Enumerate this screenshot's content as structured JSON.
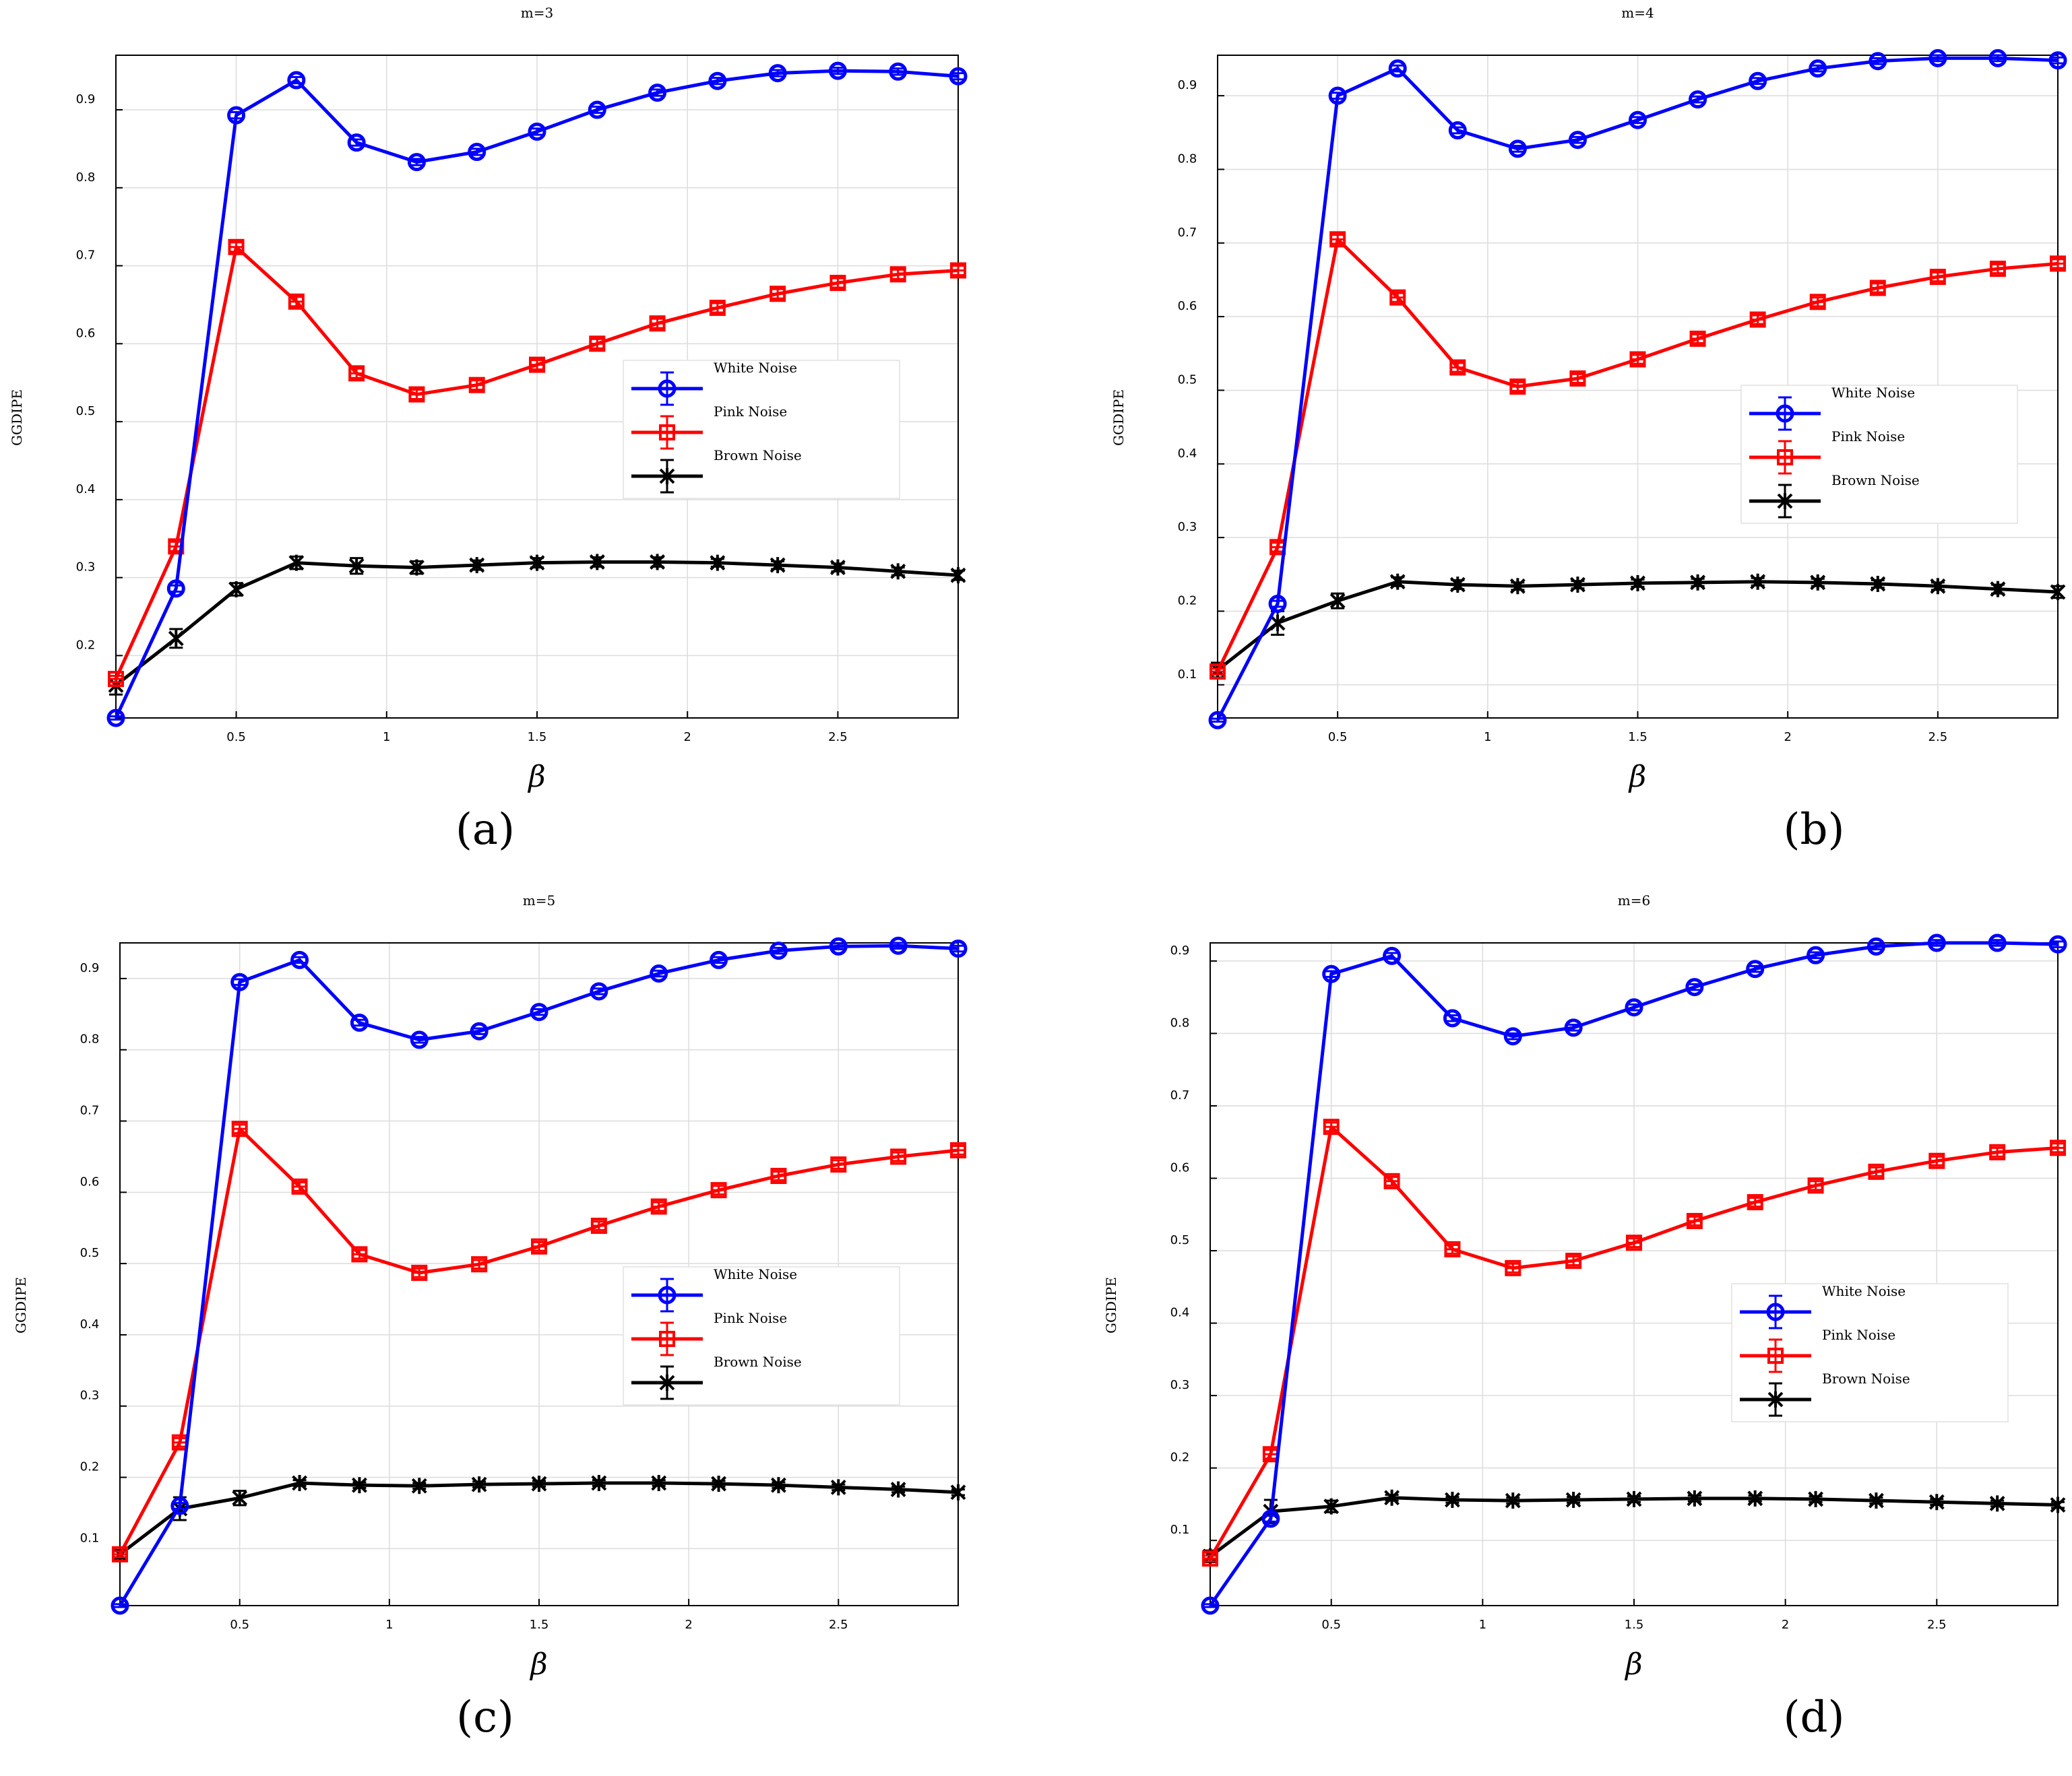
{
  "series_colors": {
    "white": "#0000ff",
    "pink": "#ff0000",
    "brown": "#000000"
  },
  "chart_data": [
    {
      "type": "line",
      "panel_label": "(a)",
      "title": "m=3",
      "xlabel": "β",
      "ylabel": "GGDIPE",
      "xlim": [
        0.1,
        2.9
      ],
      "ylim": [
        0.12,
        0.97
      ],
      "xticks": [
        0.5,
        1,
        1.5,
        2,
        2.5
      ],
      "xtick_labels": [
        "0.5",
        "1",
        "1.5",
        "2",
        "2.5"
      ],
      "yticks": [
        0.2,
        0.3,
        0.4,
        0.5,
        0.6,
        0.7,
        0.8,
        0.9
      ],
      "ytick_labels": [
        "0.2",
        "0.3",
        "0.4",
        "0.5",
        "0.6",
        "0.7",
        "0.8",
        "0.9"
      ],
      "grid": true,
      "legend_position": "center-right",
      "x": [
        0.1,
        0.3,
        0.5,
        0.7,
        0.9,
        1.1,
        1.3,
        1.5,
        1.7,
        1.9,
        2.1,
        2.3,
        2.5,
        2.7,
        2.9
      ],
      "series": [
        {
          "name": "White Noise",
          "marker": "circle",
          "values": [
            0.12,
            0.286,
            0.893,
            0.938,
            0.858,
            0.833,
            0.846,
            0.872,
            0.9,
            0.922,
            0.937,
            0.947,
            0.95,
            0.949,
            0.943
          ],
          "errors": [
            0.002,
            0.004,
            0.004,
            0.004,
            0.004,
            0.004,
            0.004,
            0.004,
            0.004,
            0.004,
            0.004,
            0.004,
            0.004,
            0.004,
            0.004
          ]
        },
        {
          "name": "Pink Noise",
          "marker": "square",
          "values": [
            0.17,
            0.34,
            0.724,
            0.654,
            0.562,
            0.535,
            0.547,
            0.573,
            0.6,
            0.626,
            0.646,
            0.664,
            0.678,
            0.689,
            0.694
          ],
          "errors": [
            0.004,
            0.006,
            0.006,
            0.006,
            0.006,
            0.006,
            0.006,
            0.006,
            0.006,
            0.006,
            0.006,
            0.006,
            0.006,
            0.006,
            0.006
          ]
        },
        {
          "name": "Brown Noise",
          "marker": "star",
          "values": [
            0.162,
            0.222,
            0.285,
            0.319,
            0.315,
            0.313,
            0.316,
            0.319,
            0.32,
            0.32,
            0.319,
            0.316,
            0.313,
            0.308,
            0.303
          ],
          "errors": [
            0.012,
            0.012,
            0.008,
            0.008,
            0.01,
            0.008,
            0.006,
            0.006,
            0.006,
            0.006,
            0.005,
            0.005,
            0.005,
            0.005,
            0.006
          ]
        }
      ]
    },
    {
      "type": "line",
      "panel_label": "(b)",
      "title": "m=4",
      "xlabel": "β",
      "ylabel": "GGDIPE",
      "xlim": [
        0.1,
        2.9
      ],
      "ylim": [
        0.055,
        0.955
      ],
      "xticks": [
        0.5,
        1,
        1.5,
        2,
        2.5
      ],
      "xtick_labels": [
        "0.5",
        "1",
        "1.5",
        "2",
        "2.5"
      ],
      "yticks": [
        0.1,
        0.2,
        0.3,
        0.4,
        0.5,
        0.6,
        0.7,
        0.8,
        0.9
      ],
      "ytick_labels": [
        "0.1",
        "0.2",
        "0.3",
        "0.4",
        "0.5",
        "0.6",
        "0.7",
        "0.8",
        "0.9"
      ],
      "grid": true,
      "legend_position": "center-right",
      "x": [
        0.1,
        0.3,
        0.5,
        0.7,
        0.9,
        1.1,
        1.3,
        1.5,
        1.7,
        1.9,
        2.1,
        2.3,
        2.5,
        2.7,
        2.9
      ],
      "series": [
        {
          "name": "White Noise",
          "marker": "circle",
          "values": [
            0.052,
            0.21,
            0.9,
            0.937,
            0.853,
            0.828,
            0.84,
            0.867,
            0.895,
            0.92,
            0.937,
            0.947,
            0.951,
            0.951,
            0.948
          ],
          "errors": [
            0.002,
            0.004,
            0.004,
            0.004,
            0.004,
            0.004,
            0.004,
            0.004,
            0.004,
            0.004,
            0.004,
            0.004,
            0.004,
            0.004,
            0.004
          ]
        },
        {
          "name": "Pink Noise",
          "marker": "square",
          "values": [
            0.118,
            0.287,
            0.705,
            0.626,
            0.531,
            0.505,
            0.516,
            0.542,
            0.57,
            0.596,
            0.62,
            0.639,
            0.654,
            0.665,
            0.672
          ],
          "errors": [
            0.004,
            0.006,
            0.006,
            0.006,
            0.006,
            0.006,
            0.006,
            0.006,
            0.006,
            0.006,
            0.006,
            0.006,
            0.006,
            0.006,
            0.006
          ]
        },
        {
          "name": "Brown Noise",
          "marker": "star",
          "values": [
            0.12,
            0.184,
            0.214,
            0.24,
            0.236,
            0.234,
            0.236,
            0.238,
            0.239,
            0.24,
            0.239,
            0.237,
            0.234,
            0.23,
            0.226
          ],
          "errors": [
            0.01,
            0.016,
            0.01,
            0.006,
            0.006,
            0.005,
            0.005,
            0.005,
            0.005,
            0.005,
            0.005,
            0.005,
            0.005,
            0.006,
            0.008
          ]
        }
      ]
    },
    {
      "type": "line",
      "panel_label": "(c)",
      "title": "m=5",
      "xlabel": "β",
      "ylabel": "GGDIPE",
      "xlim": [
        0.1,
        2.9
      ],
      "ylim": [
        0.02,
        0.95
      ],
      "xticks": [
        0.5,
        1,
        1.5,
        2,
        2.5
      ],
      "xtick_labels": [
        "0.5",
        "1",
        "1.5",
        "2",
        "2.5"
      ],
      "yticks": [
        0.1,
        0.2,
        0.3,
        0.4,
        0.5,
        0.6,
        0.7,
        0.8,
        0.9
      ],
      "ytick_labels": [
        "0.1",
        "0.2",
        "0.3",
        "0.4",
        "0.5",
        "0.6",
        "0.7",
        "0.8",
        "0.9"
      ],
      "grid": true,
      "legend_position": "center-right",
      "x": [
        0.1,
        0.3,
        0.5,
        0.7,
        0.9,
        1.1,
        1.3,
        1.5,
        1.7,
        1.9,
        2.1,
        2.3,
        2.5,
        2.7,
        2.9
      ],
      "series": [
        {
          "name": "White Noise",
          "marker": "circle",
          "values": [
            0.02,
            0.16,
            0.895,
            0.926,
            0.838,
            0.814,
            0.826,
            0.853,
            0.882,
            0.907,
            0.926,
            0.939,
            0.945,
            0.946,
            0.942
          ],
          "errors": [
            0.002,
            0.004,
            0.004,
            0.004,
            0.004,
            0.004,
            0.004,
            0.004,
            0.004,
            0.004,
            0.004,
            0.004,
            0.004,
            0.004,
            0.004
          ]
        },
        {
          "name": "Pink Noise",
          "marker": "square",
          "values": [
            0.092,
            0.249,
            0.689,
            0.608,
            0.513,
            0.487,
            0.499,
            0.524,
            0.553,
            0.58,
            0.603,
            0.623,
            0.639,
            0.65,
            0.659
          ],
          "errors": [
            0.004,
            0.006,
            0.006,
            0.006,
            0.006,
            0.006,
            0.006,
            0.006,
            0.006,
            0.006,
            0.006,
            0.006,
            0.006,
            0.006,
            0.006
          ]
        },
        {
          "name": "Brown Noise",
          "marker": "star",
          "values": [
            0.092,
            0.156,
            0.171,
            0.192,
            0.189,
            0.188,
            0.19,
            0.191,
            0.192,
            0.192,
            0.191,
            0.189,
            0.186,
            0.183,
            0.179
          ],
          "errors": [
            0.006,
            0.016,
            0.01,
            0.004,
            0.004,
            0.004,
            0.004,
            0.004,
            0.004,
            0.004,
            0.004,
            0.004,
            0.004,
            0.004,
            0.004
          ]
        }
      ]
    },
    {
      "type": "line",
      "panel_label": "(d)",
      "title": "m=6",
      "xlabel": "β",
      "ylabel": "GGDIPE",
      "xlim": [
        0.1,
        2.9
      ],
      "ylim": [
        0.01,
        0.925
      ],
      "xticks": [
        0.5,
        1,
        1.5,
        2,
        2.5
      ],
      "xtick_labels": [
        "0.5",
        "1",
        "1.5",
        "2",
        "2.5"
      ],
      "yticks": [
        0.1,
        0.2,
        0.3,
        0.4,
        0.5,
        0.6,
        0.7,
        0.8,
        0.9
      ],
      "ytick_labels": [
        "0.1",
        "0.2",
        "0.3",
        "0.4",
        "0.5",
        "0.6",
        "0.7",
        "0.8",
        "0.9"
      ],
      "grid": true,
      "legend_position": "center-right",
      "x": [
        0.1,
        0.3,
        0.5,
        0.7,
        0.9,
        1.1,
        1.3,
        1.5,
        1.7,
        1.9,
        2.1,
        2.3,
        2.5,
        2.7,
        2.9
      ],
      "series": [
        {
          "name": "White Noise",
          "marker": "circle",
          "values": [
            0.01,
            0.13,
            0.882,
            0.907,
            0.821,
            0.796,
            0.808,
            0.836,
            0.864,
            0.889,
            0.908,
            0.92,
            0.925,
            0.925,
            0.923
          ],
          "errors": [
            0.002,
            0.004,
            0.004,
            0.004,
            0.004,
            0.004,
            0.004,
            0.004,
            0.004,
            0.004,
            0.004,
            0.004,
            0.004,
            0.004,
            0.004
          ]
        },
        {
          "name": "Pink Noise",
          "marker": "square",
          "values": [
            0.075,
            0.219,
            0.671,
            0.596,
            0.502,
            0.476,
            0.486,
            0.511,
            0.541,
            0.567,
            0.59,
            0.609,
            0.624,
            0.636,
            0.642
          ],
          "errors": [
            0.004,
            0.006,
            0.006,
            0.006,
            0.006,
            0.006,
            0.006,
            0.006,
            0.006,
            0.006,
            0.006,
            0.006,
            0.006,
            0.006,
            0.006
          ]
        },
        {
          "name": "Brown Noise",
          "marker": "star",
          "values": [
            0.078,
            0.14,
            0.147,
            0.159,
            0.156,
            0.155,
            0.156,
            0.157,
            0.158,
            0.158,
            0.157,
            0.155,
            0.153,
            0.151,
            0.149
          ],
          "errors": [
            0.008,
            0.016,
            0.008,
            0.004,
            0.004,
            0.004,
            0.004,
            0.004,
            0.004,
            0.004,
            0.004,
            0.004,
            0.004,
            0.004,
            0.004
          ]
        }
      ]
    }
  ]
}
